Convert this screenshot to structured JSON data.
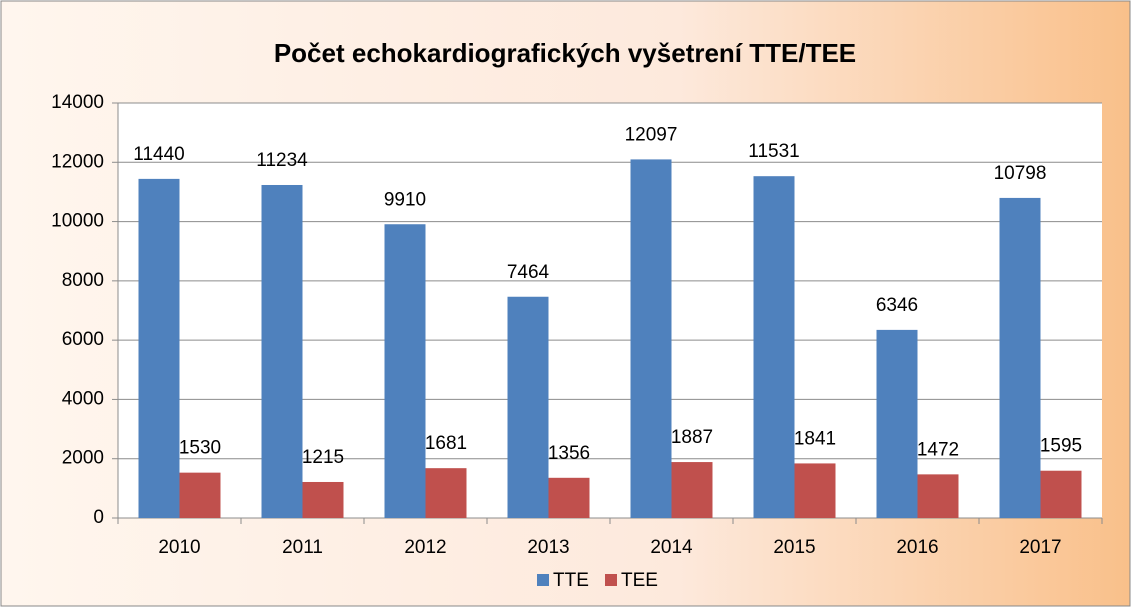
{
  "chart_data": {
    "type": "bar",
    "title": "Počet echokardiografických vyšetrení TTE/TEE",
    "categories": [
      "2010",
      "2011",
      "2012",
      "2013",
      "2014",
      "2015",
      "2016",
      "2017"
    ],
    "series": [
      {
        "name": "TTE",
        "color": "#4f81bd",
        "values": [
          11440,
          11234,
          9910,
          7464,
          12097,
          11531,
          6346,
          10798
        ]
      },
      {
        "name": "TEE",
        "color": "#c0504d",
        "values": [
          1530,
          1215,
          1681,
          1356,
          1887,
          1841,
          1472,
          1595
        ]
      }
    ],
    "ylim": [
      0,
      14000
    ],
    "yticks": [
      0,
      2000,
      4000,
      6000,
      8000,
      10000,
      12000,
      14000
    ],
    "grid": true,
    "legend": "bottom"
  }
}
